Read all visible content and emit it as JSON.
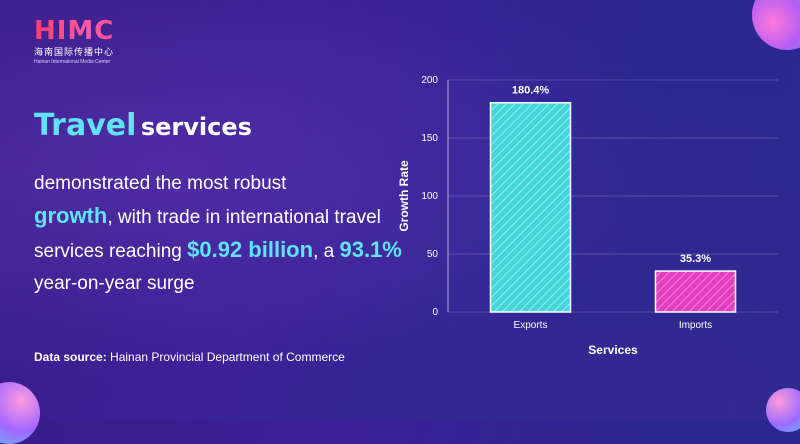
{
  "logo": {
    "mark": "HIMC",
    "cn": "海南国际传播中心",
    "en": "Hainan International Media Center"
  },
  "headline": {
    "accent": "Travel",
    "rest": "services"
  },
  "body": {
    "p1": "demonstrated the most robust",
    "growth": "growth",
    "p2": ", with trade in international travel services reaching ",
    "amount": "$0.92 billion",
    "p3": ", a ",
    "pct": "93.1%",
    "p4": " year-on-year surge"
  },
  "source": {
    "label": "Data source:",
    "text": " Hainan Provincial Department of Commerce"
  },
  "colors": {
    "accent": "#5fe3f5",
    "exports_bar": "#46d6d8",
    "imports_bar": "#e23fbf"
  },
  "chart_data": {
    "type": "bar",
    "categories": [
      "Exports",
      "Imports"
    ],
    "values": [
      180.4,
      35.3
    ],
    "data_labels": [
      "180.4%",
      "35.3%"
    ],
    "xlabel": "Services",
    "ylabel": "Growth Rate",
    "ylim": [
      0,
      200
    ],
    "yticks": [
      0,
      50,
      100,
      150,
      200
    ],
    "grid": true,
    "bar_colors": [
      "#46d6d8",
      "#e23fbf"
    ]
  }
}
